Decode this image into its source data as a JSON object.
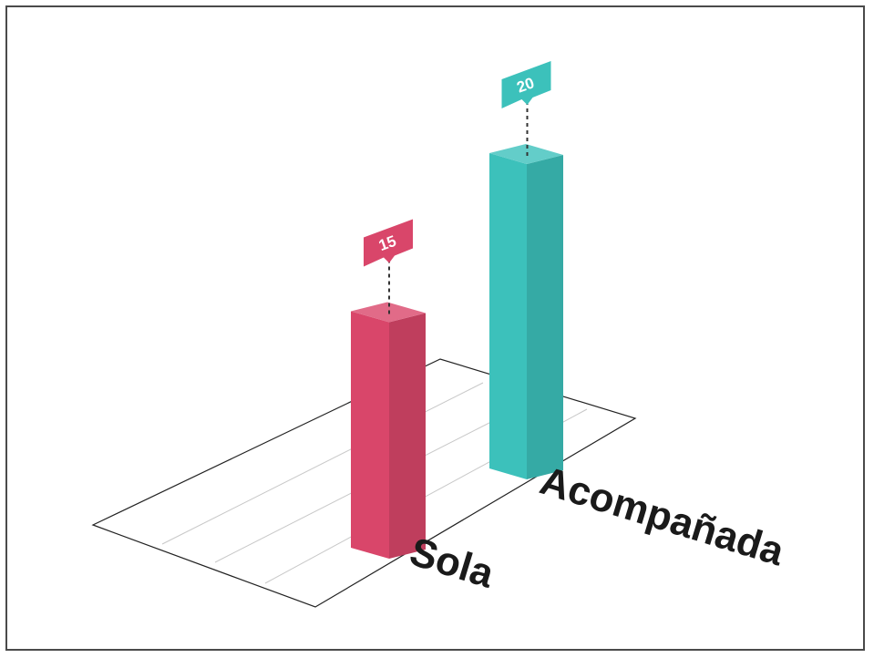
{
  "chart_data": {
    "type": "bar",
    "style": "3d-isometric",
    "categories": [
      "Sola",
      "Acompañada"
    ],
    "values": [
      15,
      20
    ],
    "value_labels": [
      "15",
      "20"
    ],
    "colors": [
      "#d9466a",
      "#3cc1bb"
    ],
    "title": "",
    "xlabel": "",
    "ylabel": "",
    "grid": true,
    "legend": "none"
  }
}
